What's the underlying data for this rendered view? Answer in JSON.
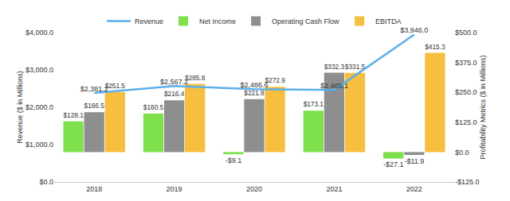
{
  "chart_data": {
    "type": "bar",
    "categories": [
      "2018",
      "2019",
      "2020",
      "2021",
      "2022"
    ],
    "series": [
      {
        "name": "Revenue",
        "type": "line",
        "axis": "y",
        "color": "#5aaeea",
        "values": [
          2381.2,
          2567.2,
          2486.6,
          2465.1,
          3946.0
        ],
        "value_labels": [
          "$2,381.2",
          "$2,567.2",
          "$2,486.6",
          "$2,465.1",
          "$3,946.0"
        ]
      },
      {
        "name": "Net Income",
        "type": "bar",
        "axis": "y2",
        "color": "#7ee04b",
        "values": [
          128.1,
          160.5,
          -9.1,
          173.1,
          -27.1
        ],
        "value_labels": [
          "$128.1",
          "$160.5",
          "-$9.1",
          "$173.1",
          "-$27.1"
        ]
      },
      {
        "name": "Operating Cash Flow",
        "type": "bar",
        "axis": "y2",
        "color": "#8e8e8e",
        "values": [
          166.5,
          216.4,
          221.8,
          332.3,
          -11.9
        ],
        "value_labels": [
          "$166.5",
          "$216.4",
          "$221.8",
          "$332.3",
          "-$11.9"
        ]
      },
      {
        "name": "EBITDA",
        "type": "bar",
        "axis": "y2",
        "color": "#f6bf3f",
        "values": [
          251.5,
          285.8,
          272.9,
          331.5,
          415.3
        ],
        "value_labels": [
          "$251.5",
          "$285.8",
          "$272.9",
          "$331.5",
          "$415.3"
        ]
      }
    ],
    "ylabel": "Revenue ($ in Millions)",
    "ylim": [
      0,
      4000
    ],
    "yticks": [
      {
        "value": 0,
        "label": "$0.0"
      },
      {
        "value": 1000,
        "label": "$1,000.0"
      },
      {
        "value": 2000,
        "label": "$2,000.0"
      },
      {
        "value": 3000,
        "label": "$3,000.0"
      },
      {
        "value": 4000,
        "label": "$4,000.0"
      }
    ],
    "y2label": "Profitability Metrics ($ in Millions)",
    "y2lim": [
      -125,
      500
    ],
    "y2ticks": [
      {
        "value": -125,
        "label": "-$125.0"
      },
      {
        "value": 0,
        "label": "$0.0"
      },
      {
        "value": 125,
        "label": "$125.0"
      },
      {
        "value": 250,
        "label": "$250.0"
      },
      {
        "value": 375,
        "label": "$375.0"
      },
      {
        "value": 500,
        "label": "$500.0"
      }
    ],
    "grid": false,
    "legend": "top",
    "data_labels": true
  }
}
